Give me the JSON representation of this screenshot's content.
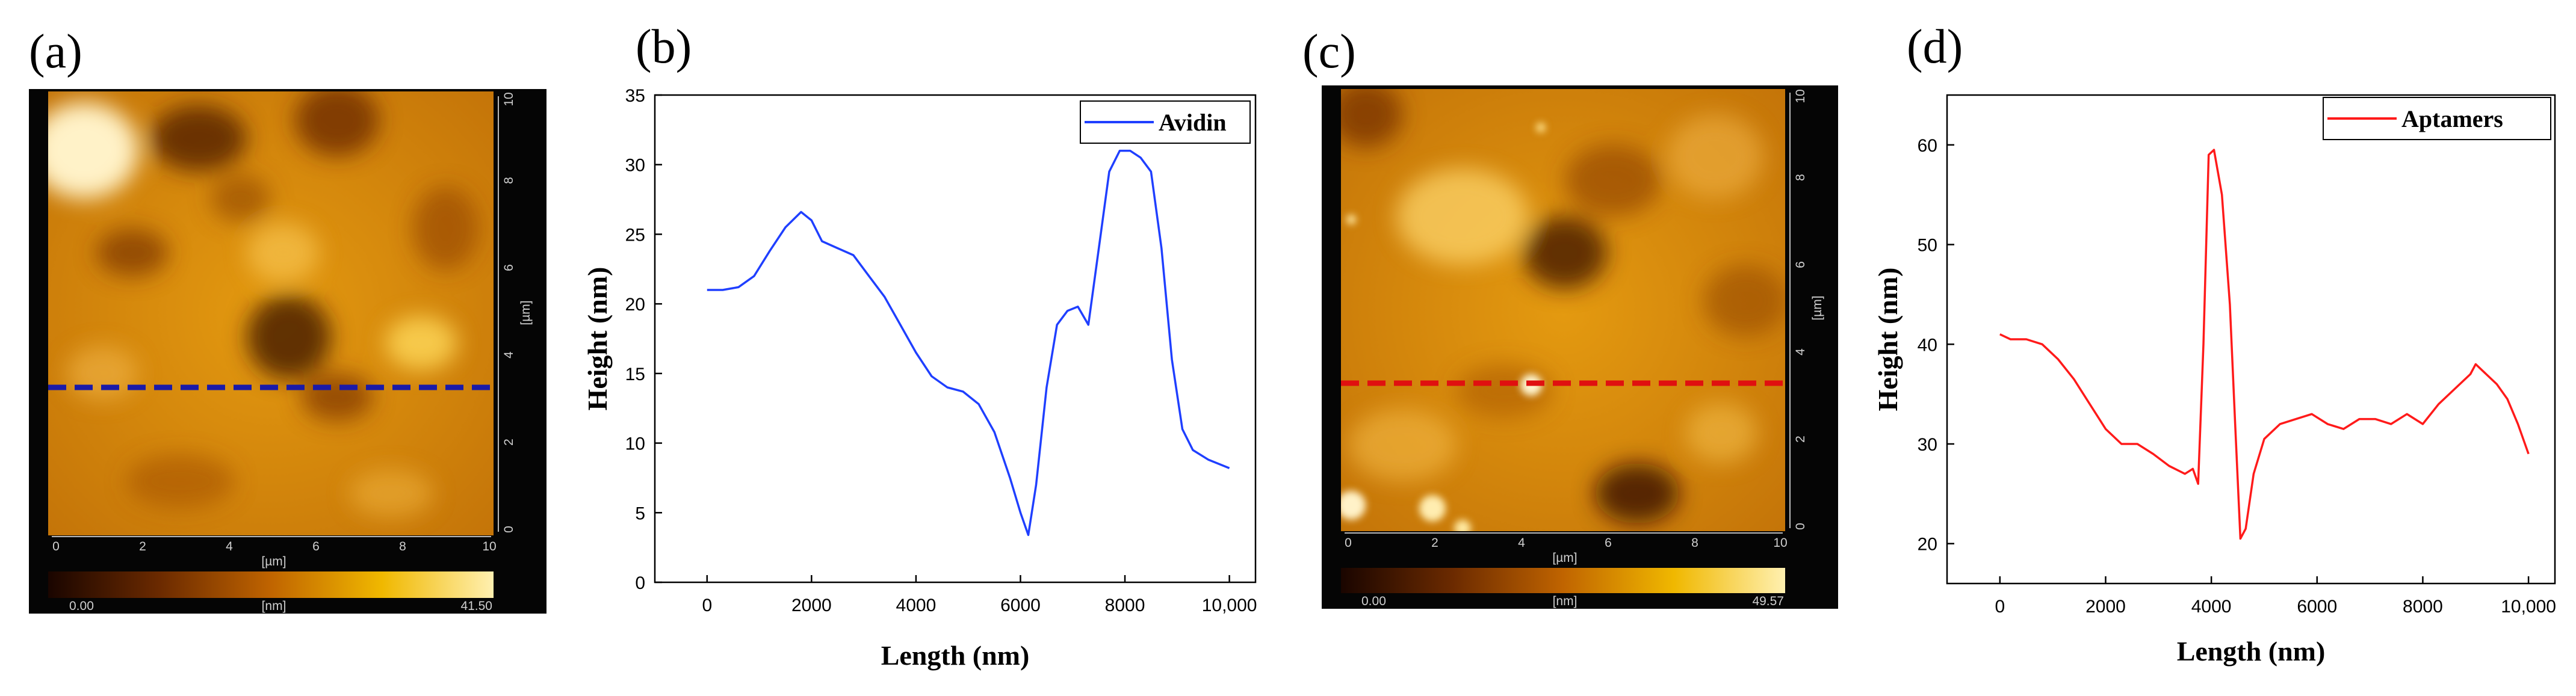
{
  "panel_labels": [
    "(a)",
    "(b)",
    "(c)",
    "(d)"
  ],
  "colors": {
    "avidin_line": "#1f3fff",
    "aptamers_line": "#ff1a1a",
    "avidin_marker": "#1a1aa8",
    "aptamers_marker": "#e01010"
  },
  "afm_a": {
    "ticks": [
      "0",
      "2",
      "4",
      "6",
      "8",
      "10"
    ],
    "unit": "[µm]",
    "scale_min": "0.00",
    "scale_unit": "[nm]",
    "scale_max": "41.50"
  },
  "afm_c": {
    "ticks": [
      "0",
      "2",
      "4",
      "6",
      "8",
      "10"
    ],
    "unit": "[µm]",
    "scale_min": "0.00",
    "scale_unit": "[nm]",
    "scale_max": "49.57"
  },
  "chart_data": [
    {
      "type": "line",
      "title": "",
      "xlabel": "Length (nm)",
      "ylabel": "Height (nm)",
      "xlim": [
        -1000,
        10500
      ],
      "ylim": [
        0,
        35
      ],
      "xticks": [
        0,
        2000,
        4000,
        6000,
        8000,
        10000
      ],
      "xtick_labels": [
        "0",
        "2000",
        "4000",
        "6000",
        "8000",
        "10,000"
      ],
      "yticks": [
        0,
        5,
        10,
        15,
        20,
        25,
        30,
        35
      ],
      "ytick_labels": [
        "0",
        "5",
        "10",
        "15",
        "20",
        "25",
        "30",
        "35"
      ],
      "legend": "top-right",
      "series": [
        {
          "name": "Avidin",
          "x": [
            0,
            300,
            600,
            900,
            1200,
            1500,
            1800,
            2000,
            2200,
            2500,
            2800,
            3100,
            3400,
            3700,
            4000,
            4300,
            4600,
            4900,
            5200,
            5500,
            5800,
            6000,
            6150,
            6300,
            6500,
            6700,
            6900,
            7100,
            7300,
            7500,
            7700,
            7900,
            8100,
            8300,
            8500,
            8700,
            8900,
            9100,
            9300,
            9600,
            10000
          ],
          "y": [
            21,
            21,
            21.2,
            22,
            23.8,
            25.5,
            26.6,
            26,
            24.5,
            24,
            23.5,
            22,
            20.5,
            18.5,
            16.5,
            14.8,
            14,
            13.7,
            12.8,
            10.8,
            7.5,
            5,
            3.4,
            7,
            14,
            18.5,
            19.5,
            19.8,
            18.5,
            24,
            29.5,
            31,
            31,
            30.5,
            29.5,
            24,
            16,
            11,
            9.5,
            8.8,
            8.2
          ]
        }
      ]
    },
    {
      "type": "line",
      "title": "",
      "xlabel": "Length (nm)",
      "ylabel": "Height (nm)",
      "xlim": [
        -1000,
        10500
      ],
      "ylim": [
        16,
        65
      ],
      "xticks": [
        0,
        2000,
        4000,
        6000,
        8000,
        10000
      ],
      "xtick_labels": [
        "0",
        "2000",
        "4000",
        "6000",
        "8000",
        "10,000"
      ],
      "yticks": [
        20,
        30,
        40,
        50,
        60
      ],
      "ytick_labels": [
        "20",
        "30",
        "40",
        "50",
        "60"
      ],
      "legend": "top-right",
      "series": [
        {
          "name": "Aptamers",
          "x": [
            0,
            200,
            500,
            800,
            1100,
            1400,
            1700,
            2000,
            2300,
            2600,
            2900,
            3200,
            3500,
            3650,
            3750,
            3850,
            3950,
            4050,
            4200,
            4350,
            4450,
            4550,
            4650,
            4800,
            5000,
            5300,
            5600,
            5900,
            6200,
            6500,
            6800,
            7100,
            7400,
            7700,
            8000,
            8300,
            8600,
            8900,
            9000,
            9200,
            9400,
            9600,
            9800,
            10000
          ],
          "y": [
            41,
            40.5,
            40.5,
            40,
            38.5,
            36.5,
            34,
            31.5,
            30,
            30,
            29,
            27.8,
            27,
            27.5,
            26,
            40,
            59,
            59.5,
            55,
            44,
            32,
            20.5,
            21.5,
            27,
            30.5,
            32,
            32.5,
            33,
            32,
            31.5,
            32.5,
            32.5,
            32,
            33,
            32,
            34,
            35.5,
            37,
            38,
            37,
            36,
            34.5,
            32,
            29
          ]
        }
      ]
    }
  ]
}
